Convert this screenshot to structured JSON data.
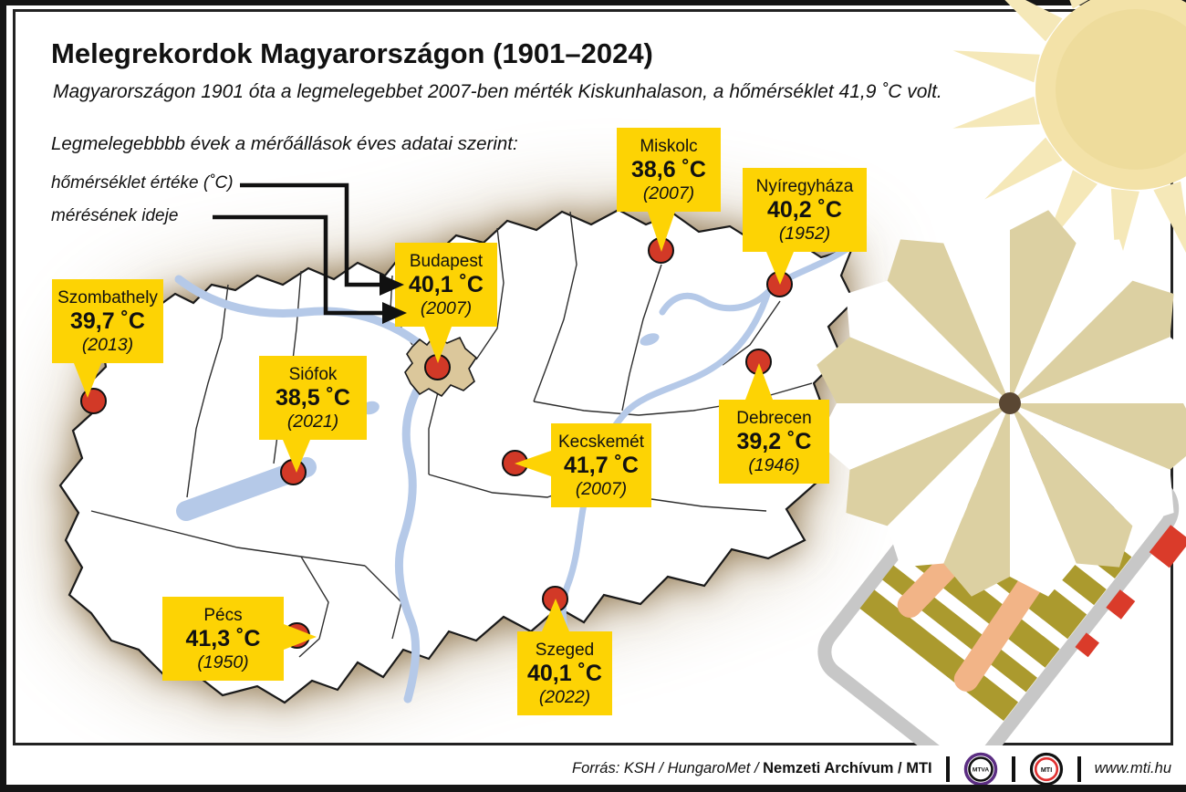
{
  "header": {
    "title": "Melegrekordok Magyarországon (1901–2024)",
    "subtitle": "Magyarországon 1901 óta a legmelegebbet 2007-ben mérték Kiskunhalason, a hőmérséklet 41,9 ˚C volt."
  },
  "legend": {
    "intro": "Legmelegebbbb évek a mérőállások éves adatai szerint:",
    "temp_label": "hőmérséklet értéke (˚C)",
    "year_label": "mérésének ideje"
  },
  "cities": [
    {
      "id": "szombathely",
      "name": "Szombathely",
      "temp": "39,7 ˚C",
      "year": "(2013)"
    },
    {
      "id": "siofok",
      "name": "Siófok",
      "temp": "38,5 ˚C",
      "year": "(2021)"
    },
    {
      "id": "pecs",
      "name": "Pécs",
      "temp": "41,3 ˚C",
      "year": "(1950)"
    },
    {
      "id": "budapest",
      "name": "Budapest",
      "temp": "40,1 ˚C",
      "year": "(2007)"
    },
    {
      "id": "miskolc",
      "name": "Miskolc",
      "temp": "38,6 ˚C",
      "year": "(2007)"
    },
    {
      "id": "nyiregyhaza",
      "name": "Nyíregyháza",
      "temp": "40,2 ˚C",
      "year": "(1952)"
    },
    {
      "id": "debrecen",
      "name": "Debrecen",
      "temp": "39,2 ˚C",
      "year": "(1946)"
    },
    {
      "id": "kecskemet",
      "name": "Kecskemét",
      "temp": "41,7 ˚C",
      "year": "(2007)"
    },
    {
      "id": "szeged",
      "name": "Szeged",
      "temp": "40,1 ˚C",
      "year": "(2022)"
    }
  ],
  "footer": {
    "source_italic": "Forrás: KSH / HungaroMet / ",
    "source_bold": "Nemzeti Archívum / MTI",
    "mtva_logo_text": "MTVA",
    "mti_logo_text": "MTI",
    "site": "www.mti.hu"
  },
  "colors": {
    "label_yellow": "#fdd304",
    "dot_red": "#d23927",
    "river_blue": "#b5c9e8",
    "sun_ray": "#f5e8b8",
    "sun_disc": "#f3e2a8",
    "sun_inner": "#eedc9c",
    "umbrella_tan": "#dcd0a2",
    "budapest_area": "#dbc79b",
    "lounger_olive": "#ab9a2e",
    "skin": "#f2b487",
    "shorts_navy": "#1c2b4d",
    "frame_gray": "#c7c7c7",
    "mtva_purple": "#5b2d82",
    "mti_red": "#e03030"
  }
}
